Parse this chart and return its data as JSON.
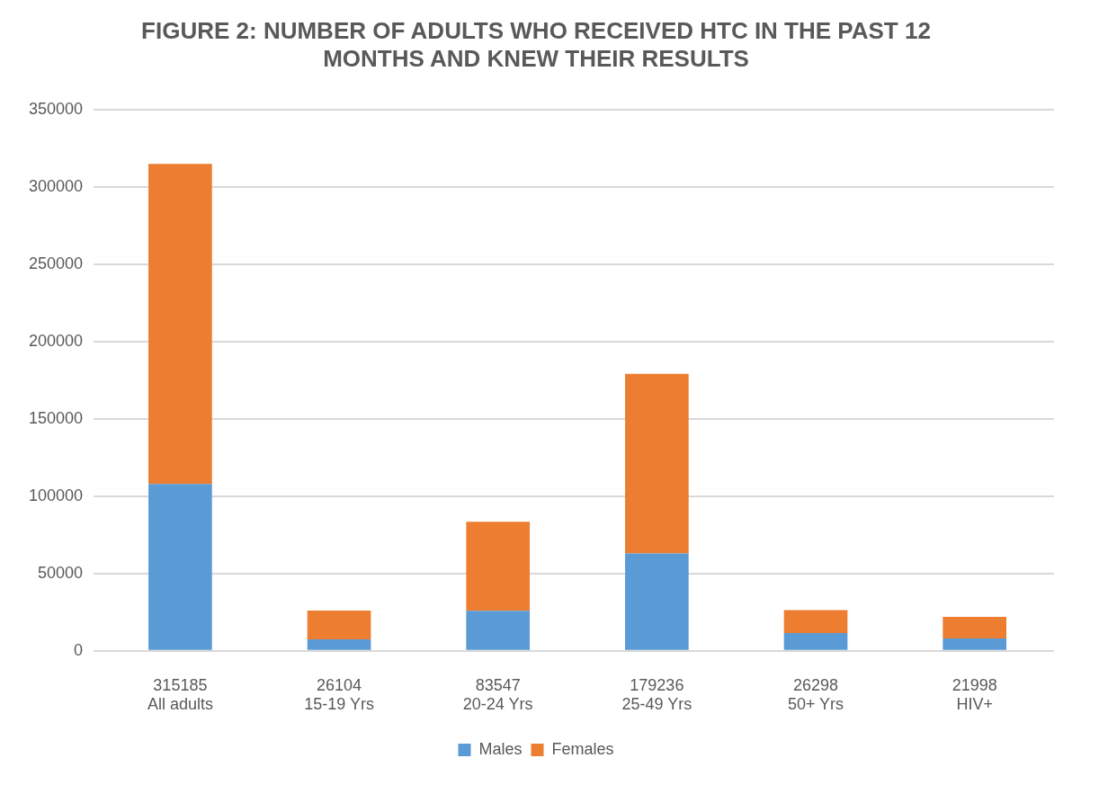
{
  "chart_data": {
    "type": "bar",
    "title": "FIGURE 2: NUMBER OF ADULTS WHO RECEIVED HTC IN THE PAST 12 MONTHS AND KNEW THEIR RESULTS",
    "categories": [
      "All adults",
      "15-19 Yrs",
      "20-24 Yrs",
      "25-49 Yrs",
      "50+ Yrs",
      "HIV+"
    ],
    "totals": [
      "315185",
      "26104",
      "83547",
      "179236",
      "26298",
      "21998"
    ],
    "stacked": true,
    "series": [
      {
        "name": "Males",
        "color": "#5b9bd5",
        "values": [
          108000,
          7400,
          26000,
          63000,
          11500,
          8000
        ]
      },
      {
        "name": "Females",
        "color": "#ed7d31",
        "values": [
          207185,
          18704,
          57547,
          116236,
          14798,
          13998
        ]
      }
    ],
    "ylim": [
      0,
      350000
    ],
    "yticks": [
      0,
      50000,
      100000,
      150000,
      200000,
      250000,
      300000,
      350000
    ],
    "grid": "y",
    "legend": "bottom"
  }
}
